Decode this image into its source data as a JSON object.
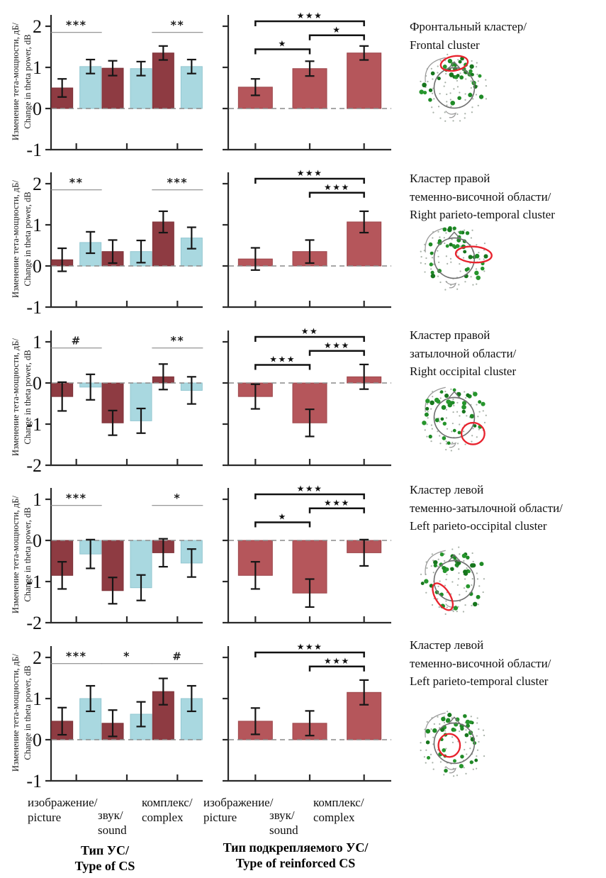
{
  "colors": {
    "cs_dark_red": "#8e3b42",
    "cs_light_blue": "#a9d8e0",
    "reinforced_red": "#b5565b",
    "error_bar": "#161616",
    "axis": "#2a2a2a",
    "zero_dashed": "#8a8a8a",
    "sig_line": "#8a8a8a",
    "sig_text": "#222222",
    "bracket": "#121212",
    "electrode_green": "#1f8a26",
    "background_dot": "#a9b2a9",
    "head_outline": "#707070",
    "highlight_red": "#e8232e"
  },
  "y_axis": {
    "label_ru": "Изменение тета-мощности, дБ/",
    "label_en": "Change in theta power, dB"
  },
  "x_axis": {
    "categories": [
      {
        "ru": "изображение/",
        "en": "picture"
      },
      {
        "ru": "звук/",
        "en": "sound"
      },
      {
        "ru": "комплекс/",
        "en": "complex"
      }
    ],
    "left_title_ru": "Тип УС/",
    "left_title_en": "Type of CS",
    "right_title_ru": "Тип подкрепляемого УС/",
    "right_title_en": "Type of reinforced CS"
  },
  "chart_data": [
    {
      "cluster_title_lines": [
        "Фронтальный кластер/",
        "Frontal cluster"
      ],
      "ylim": [
        -1,
        2
      ],
      "yticks": [
        2,
        1,
        0,
        -1
      ],
      "left_chart": {
        "type": "bar",
        "categories": [
          "изображение/picture",
          "звук/sound",
          "комплекс/complex"
        ],
        "series": [
          {
            "name": "dark-red",
            "values": [
              0.5,
              0.98,
              1.35
            ],
            "errors": [
              0.22,
              0.18,
              0.17
            ]
          },
          {
            "name": "light-blue",
            "values": [
              1.02,
              0.97,
              1.02
            ],
            "errors": [
              0.17,
              0.17,
              0.17
            ]
          }
        ],
        "significance": [
          {
            "category": 0,
            "label": "***"
          },
          {
            "category": 2,
            "label": "**"
          }
        ]
      },
      "right_chart": {
        "type": "bar",
        "categories": [
          "изображение/picture",
          "звук/sound",
          "комплекс/complex"
        ],
        "values": [
          0.52,
          0.97,
          1.35
        ],
        "errors": [
          0.2,
          0.18,
          0.17
        ],
        "significance_brackets": [
          {
            "from": 0,
            "to": 2,
            "label": "***"
          },
          {
            "from": 1,
            "to": 2,
            "label": "*"
          },
          {
            "from": 0,
            "to": 1,
            "label": "*"
          }
        ]
      },
      "head_map": {
        "region": "frontal",
        "highlight_ellipse": {
          "cx": 56,
          "cy": 16,
          "rx": 19,
          "ry": 10,
          "rot": -10
        }
      }
    },
    {
      "cluster_title_lines": [
        "Кластер правой",
        "теменно-височной области/",
        "Right parieto-temporal cluster"
      ],
      "ylim": [
        -1,
        2
      ],
      "yticks": [
        2,
        1,
        0,
        -1
      ],
      "left_chart": {
        "type": "bar",
        "categories": [
          "изображение/picture",
          "звук/sound",
          "комплекс/complex"
        ],
        "series": [
          {
            "name": "dark-red",
            "values": [
              0.15,
              0.35,
              1.07
            ],
            "errors": [
              0.28,
              0.28,
              0.26
            ]
          },
          {
            "name": "light-blue",
            "values": [
              0.57,
              0.35,
              0.68
            ],
            "errors": [
              0.26,
              0.27,
              0.26
            ]
          }
        ],
        "significance": [
          {
            "category": 0,
            "label": "**"
          },
          {
            "category": 2,
            "label": "***"
          }
        ]
      },
      "right_chart": {
        "type": "bar",
        "categories": [
          "изображение/picture",
          "звук/sound",
          "комплекс/complex"
        ],
        "values": [
          0.17,
          0.35,
          1.07
        ],
        "errors": [
          0.27,
          0.28,
          0.26
        ],
        "significance_brackets": [
          {
            "from": 0,
            "to": 2,
            "label": "***"
          },
          {
            "from": 1,
            "to": 2,
            "label": "***"
          }
        ]
      },
      "head_map": {
        "region": "right-parieto-temporal",
        "highlight_ellipse": {
          "cx": 83,
          "cy": 45,
          "rx": 25,
          "ry": 11,
          "rot": 4
        }
      }
    },
    {
      "cluster_title_lines": [
        "Кластер правой",
        "затылочной области/",
        "Right occipital cluster"
      ],
      "ylim": [
        -2,
        1
      ],
      "yticks": [
        1,
        0,
        -1,
        -2
      ],
      "left_chart": {
        "type": "bar",
        "categories": [
          "изображение/picture",
          "звук/sound",
          "комплекс/complex"
        ],
        "series": [
          {
            "name": "dark-red",
            "values": [
              -0.33,
              -0.97,
              0.15
            ],
            "errors": [
              0.35,
              0.3,
              0.31
            ]
          },
          {
            "name": "light-blue",
            "values": [
              -0.1,
              -0.92,
              -0.18
            ],
            "errors": [
              0.31,
              0.3,
              0.33
            ]
          }
        ],
        "significance": [
          {
            "category": 0,
            "label": "#"
          },
          {
            "category": 2,
            "label": "**"
          }
        ]
      },
      "right_chart": {
        "type": "bar",
        "categories": [
          "изображение/picture",
          "звук/sound",
          "комплекс/complex"
        ],
        "values": [
          -0.33,
          -0.97,
          0.15
        ],
        "errors": [
          0.3,
          0.33,
          0.3
        ],
        "significance_brackets": [
          {
            "from": 0,
            "to": 2,
            "label": "**"
          },
          {
            "from": 1,
            "to": 2,
            "label": "***"
          },
          {
            "from": 0,
            "to": 1,
            "label": "***"
          }
        ]
      },
      "head_map": {
        "region": "right-occipital",
        "highlight_ellipse": {
          "cx": 82,
          "cy": 72,
          "rx": 16,
          "ry": 15,
          "rot": 0
        }
      }
    },
    {
      "cluster_title_lines": [
        "Кластер левой",
        "теменно-затылочной области/",
        "Left parieto-occipital cluster"
      ],
      "ylim": [
        -2,
        1
      ],
      "yticks": [
        1,
        0,
        -1,
        -2
      ],
      "left_chart": {
        "type": "bar",
        "categories": [
          "изображение/picture",
          "звук/sound",
          "комплекс/complex"
        ],
        "series": [
          {
            "name": "dark-red",
            "values": [
              -0.85,
              -1.22,
              -0.3
            ],
            "errors": [
              0.33,
              0.32,
              0.34
            ]
          },
          {
            "name": "light-blue",
            "values": [
              -0.33,
              -1.15,
              -0.55
            ],
            "errors": [
              0.35,
              0.31,
              0.34
            ]
          }
        ],
        "significance": [
          {
            "category": 0,
            "label": "***"
          },
          {
            "category": 2,
            "label": "*"
          }
        ]
      },
      "right_chart": {
        "type": "bar",
        "categories": [
          "изображение/picture",
          "звук/sound",
          "комплекс/complex"
        ],
        "values": [
          -0.85,
          -1.28,
          -0.3
        ],
        "errors": [
          0.33,
          0.34,
          0.32
        ],
        "significance_brackets": [
          {
            "from": 0,
            "to": 2,
            "label": "***"
          },
          {
            "from": 1,
            "to": 2,
            "label": "***"
          },
          {
            "from": 0,
            "to": 1,
            "label": "*"
          }
        ]
      },
      "head_map": {
        "region": "left-parieto-occipital",
        "highlight_ellipse": {
          "cx": 40,
          "cy": 72,
          "rx": 10,
          "ry": 21,
          "rot": -32
        }
      }
    },
    {
      "cluster_title_lines": [
        "Кластер левой",
        "теменно-височной области/",
        "Left parieto-temporal cluster"
      ],
      "ylim": [
        -1,
        2
      ],
      "yticks": [
        2,
        1,
        0,
        -1
      ],
      "left_chart": {
        "type": "bar",
        "categories": [
          "изображение/picture",
          "звук/sound",
          "комплекс/complex"
        ],
        "series": [
          {
            "name": "dark-red",
            "values": [
              0.45,
              0.4,
              1.17
            ],
            "errors": [
              0.33,
              0.32,
              0.32
            ]
          },
          {
            "name": "light-blue",
            "values": [
              1.0,
              0.62,
              1.0
            ],
            "errors": [
              0.31,
              0.3,
              0.31
            ]
          }
        ],
        "significance": [
          {
            "category": 0,
            "label": "***"
          },
          {
            "category": 1,
            "label": "*"
          },
          {
            "category": 2,
            "label": "#"
          }
        ]
      },
      "right_chart": {
        "type": "bar",
        "categories": [
          "изображение/picture",
          "звук/sound",
          "комплекс/complex"
        ],
        "values": [
          0.45,
          0.4,
          1.15
        ],
        "errors": [
          0.32,
          0.3,
          0.3
        ],
        "significance_brackets": [
          {
            "from": 0,
            "to": 2,
            "label": "***"
          },
          {
            "from": 1,
            "to": 2,
            "label": "***"
          }
        ]
      },
      "head_map": {
        "region": "left-parieto-temporal",
        "highlight_ellipse": {
          "cx": 49,
          "cy": 53,
          "rx": 15,
          "ry": 16,
          "rot": 0
        }
      }
    }
  ]
}
